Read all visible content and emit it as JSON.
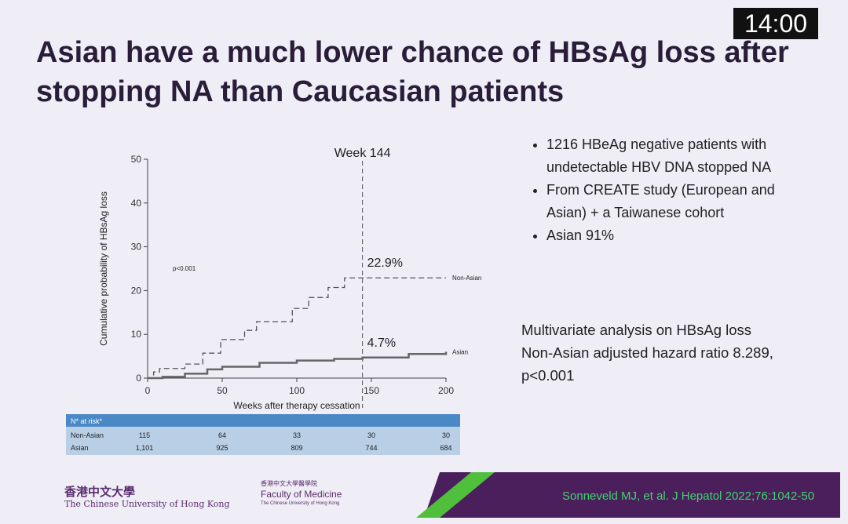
{
  "slide": {
    "title": "Asian have a much lower chance of HBsAg loss after stopping NA than Caucasian patients",
    "timer": "14:00",
    "bullets": [
      "1216 HBeAg negative patients with undetectable HBV DNA stopped NA",
      "From CREATE study (European and Asian) + a Taiwanese cohort",
      "Asian 91%"
    ],
    "analysis": [
      "Multivariate analysis on HBsAg loss",
      "Non-Asian adjusted hazard ratio 8.289,",
      "p<0.001"
    ],
    "citation": "Sonneveld MJ, et al. J Hepatol 2022;76:1042-50",
    "logo_left": [
      "香港中文大學",
      "The Chinese University of Hong Kong"
    ],
    "logo_right": [
      "香港中文大學醫學院",
      "Faculty of Medicine",
      "The Chinese University of Hong Kong"
    ]
  },
  "table": {
    "header": "N* at risk*",
    "rows": [
      [
        "Non-Asian",
        "115",
        "64",
        "33",
        "30",
        "30"
      ],
      [
        "Asian",
        "1,101",
        "925",
        "809",
        "744",
        "684"
      ]
    ]
  },
  "chart_data": {
    "type": "line",
    "step": true,
    "xlabel": "Weeks after therapy cessation",
    "ylabel": "Cumulative probability of HBsAg loss",
    "xlim": [
      0,
      200
    ],
    "ylim": [
      0,
      50
    ],
    "xticks": [
      0,
      50,
      100,
      150,
      200
    ],
    "yticks": [
      0,
      10,
      20,
      30,
      40,
      50
    ],
    "p_value": "p<0.001",
    "vline": {
      "x": 144,
      "label": "Week 144"
    },
    "annotations": [
      {
        "x": 144,
        "y": 22.9,
        "text": "22.9%"
      },
      {
        "x": 144,
        "y": 4.7,
        "text": "4.7%"
      }
    ],
    "series": [
      {
        "name": "Non-Asian",
        "color": "#555555",
        "dashed": true,
        "x": [
          0,
          4,
          8,
          25,
          37,
          49,
          65,
          73,
          97,
          108,
          121,
          132,
          200
        ],
        "values": [
          0,
          1.4,
          2.2,
          3.2,
          5.7,
          8.8,
          10.9,
          12.9,
          15.9,
          18.4,
          20.7,
          22.9,
          22.9
        ]
      },
      {
        "name": "Asian",
        "color": "#666666",
        "dashed": false,
        "x": [
          0,
          10,
          25,
          40,
          50,
          75,
          100,
          125,
          144,
          175,
          200
        ],
        "values": [
          0,
          0.3,
          1,
          2,
          2.6,
          3.5,
          4,
          4.4,
          4.7,
          5.5,
          6
        ]
      }
    ]
  }
}
